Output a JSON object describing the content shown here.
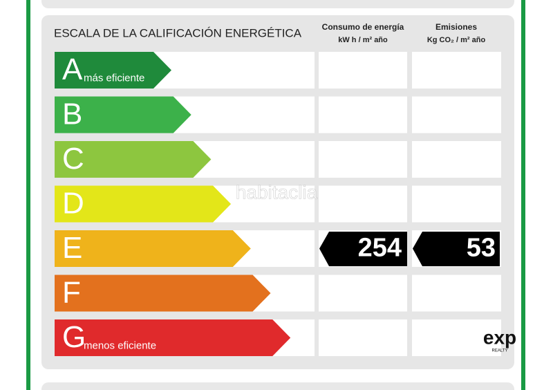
{
  "title": "ESCALA DE LA CALIFICACIÓN ENERGÉTICA",
  "columns": [
    {
      "title": "Consumo de energía",
      "unit": "kW h / m² año"
    },
    {
      "title": "Emisiones",
      "unit": "Kg CO₂ / m² año"
    }
  ],
  "rows": [
    {
      "letter": "A",
      "label": "más eficiente",
      "color": "#1f8a3b"
    },
    {
      "letter": "B",
      "color": "#3cb14a"
    },
    {
      "letter": "C",
      "color": "#8dc63f"
    },
    {
      "letter": "D",
      "color": "#e3e619"
    },
    {
      "letter": "E",
      "color": "#efb31b",
      "consumption": 254,
      "emissions": 53
    },
    {
      "letter": "F",
      "color": "#e3711e"
    },
    {
      "letter": "G",
      "label": "menos eficiente",
      "color": "#e02a2c"
    }
  ],
  "watermark": "habitaclia",
  "logo": {
    "name": "exp",
    "sub": "REALTY"
  }
}
